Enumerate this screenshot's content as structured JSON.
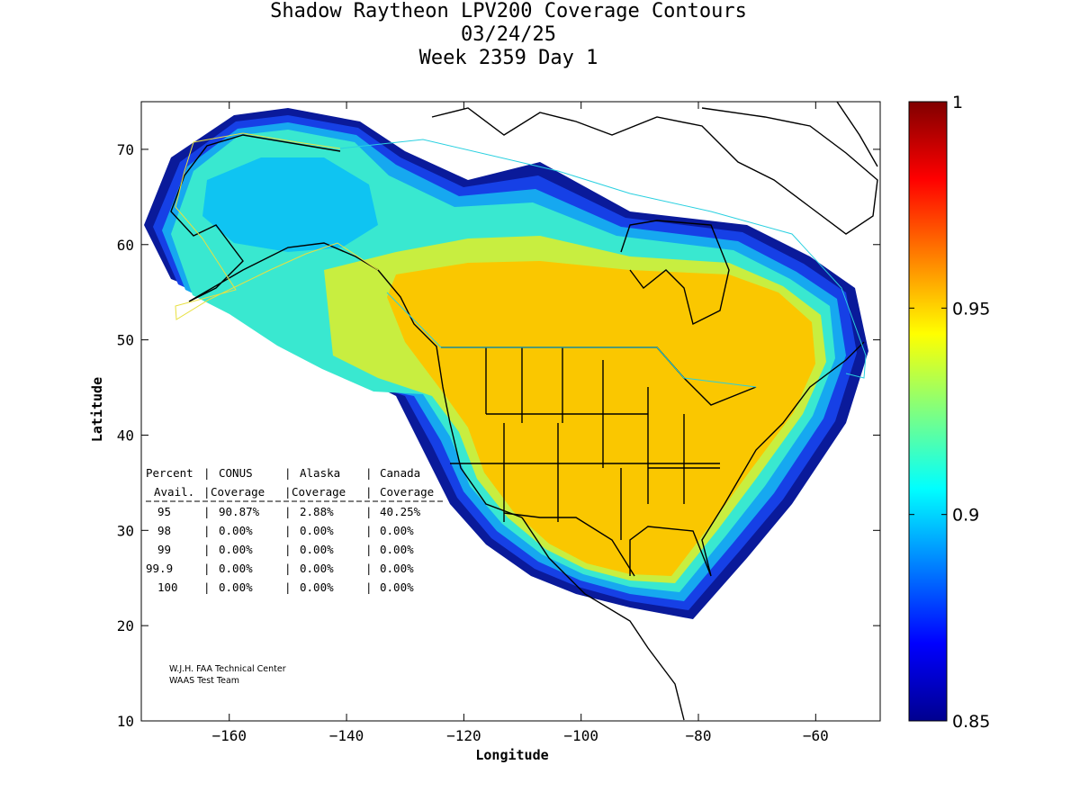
{
  "chart_data": {
    "type": "heatmap",
    "title": "Shadow Raytheon LPV200 Coverage Contours",
    "subtitle_date": "03/24/25",
    "subtitle_week": "Week 2359 Day 1",
    "xlabel": "Longitude",
    "ylabel": "Latitude",
    "xlim": [
      -175,
      -49
    ],
    "ylim": [
      10,
      75
    ],
    "xticks": [
      -160,
      -140,
      -120,
      -100,
      -80,
      -60
    ],
    "yticks": [
      10,
      20,
      30,
      40,
      50,
      60,
      70
    ],
    "colorbar": {
      "min": 0.85,
      "max": 1,
      "ticks": [
        "1",
        "0.95",
        "0.9",
        "0.85"
      ],
      "tick_values": [
        1,
        0.95,
        0.9,
        0.85
      ],
      "colormap": "jet"
    },
    "coverage_table": {
      "header1": [
        "Percent",
        "CONUS",
        "Alaska",
        "Canada"
      ],
      "header2": [
        "Avail.",
        "Coverage",
        "Coverage",
        "Coverage"
      ],
      "rows": [
        [
          "95",
          "90.87%",
          "2.88%",
          "40.25%"
        ],
        [
          "98",
          "0.00%",
          "0.00%",
          "0.00%"
        ],
        [
          "99",
          "0.00%",
          "0.00%",
          "0.00%"
        ],
        [
          "99.9",
          "0.00%",
          "0.00%",
          "0.00%"
        ],
        [
          "100",
          "0.00%",
          "0.00%",
          "0.00%"
        ]
      ]
    },
    "credit_line1": "W.J.H. FAA Technical Center",
    "credit_line2": "WAAS Test Team"
  }
}
